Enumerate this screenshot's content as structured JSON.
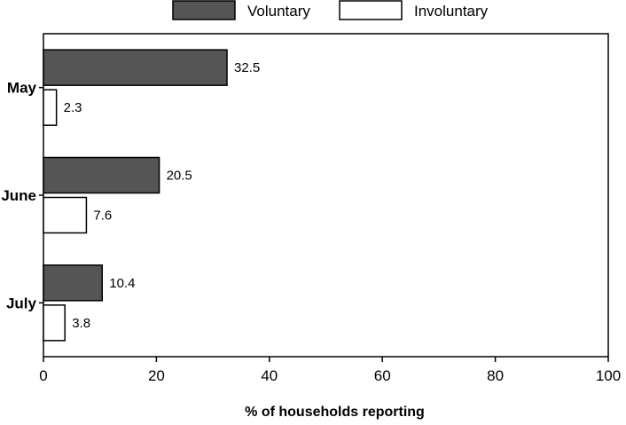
{
  "chart_data": {
    "type": "bar",
    "orientation": "horizontal",
    "categories": [
      "May",
      "June",
      "July"
    ],
    "series": [
      {
        "name": "Voluntary",
        "values": [
          32.5,
          20.5,
          10.4
        ],
        "color": "#555555"
      },
      {
        "name": "Involuntary",
        "values": [
          2.3,
          7.6,
          3.8
        ],
        "color": "#ffffff"
      }
    ],
    "xlabel": "% of households reporting",
    "ylabel": "",
    "xlim": [
      0,
      100
    ],
    "xticks": [
      0,
      20,
      40,
      60,
      80,
      100
    ],
    "grid": false,
    "legend_position": "top"
  }
}
